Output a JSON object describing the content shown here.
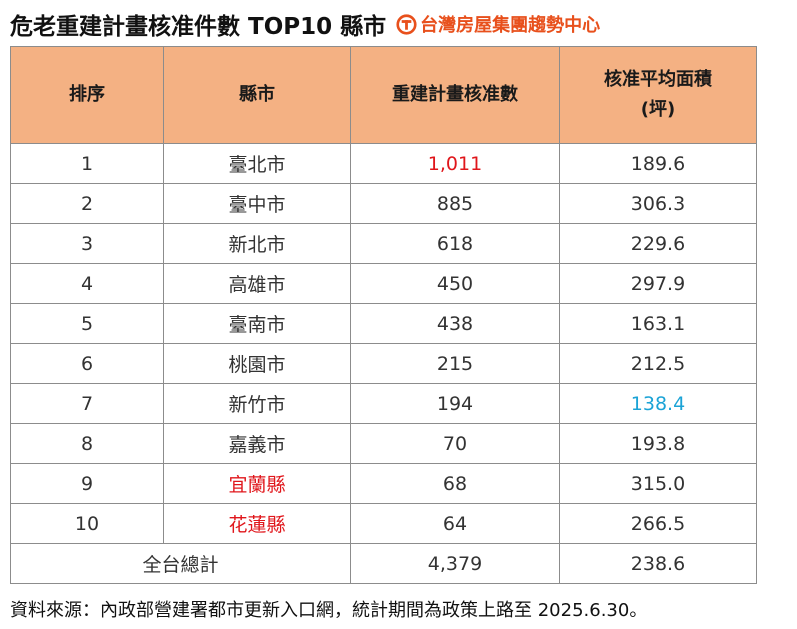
{
  "title": "危老重建計畫核准件數 TOP10 縣市",
  "brand": {
    "logo_icon": "t-circle-logo-icon",
    "name": "台灣房屋集團趨勢中心",
    "color": "#e8501c"
  },
  "table": {
    "headers": {
      "rank": "排序",
      "city": "縣市",
      "count": "重建計畫核准數",
      "area_line1": "核准平均面積",
      "area_line2": "(坪)"
    },
    "rows": [
      {
        "rank": "1",
        "city": "臺北市",
        "count": "1,011",
        "area": "189.6"
      },
      {
        "rank": "2",
        "city": "臺中市",
        "count": "885",
        "area": "306.3"
      },
      {
        "rank": "3",
        "city": "新北市",
        "count": "618",
        "area": "229.6"
      },
      {
        "rank": "4",
        "city": "高雄市",
        "count": "450",
        "area": "297.9"
      },
      {
        "rank": "5",
        "city": "臺南市",
        "count": "438",
        "area": "163.1"
      },
      {
        "rank": "6",
        "city": "桃園市",
        "count": "215",
        "area": "212.5"
      },
      {
        "rank": "7",
        "city": "新竹市",
        "count": "194",
        "area": "138.4"
      },
      {
        "rank": "8",
        "city": "嘉義市",
        "count": "70",
        "area": "193.8"
      },
      {
        "rank": "9",
        "city": "宜蘭縣",
        "count": "68",
        "area": "315.0"
      },
      {
        "rank": "10",
        "city": "花蓮縣",
        "count": "64",
        "area": "266.5"
      }
    ],
    "total": {
      "label": "全台總計",
      "count": "4,379",
      "area": "238.6"
    },
    "colors": {
      "header_bg": "#f4b183",
      "highlight_red": "#e0161b",
      "highlight_blue": "#1ba3d6"
    }
  },
  "footer": "資料來源：內政部營建署都市更新入口網，統計期間為政策上路至 2025.6.30。"
}
